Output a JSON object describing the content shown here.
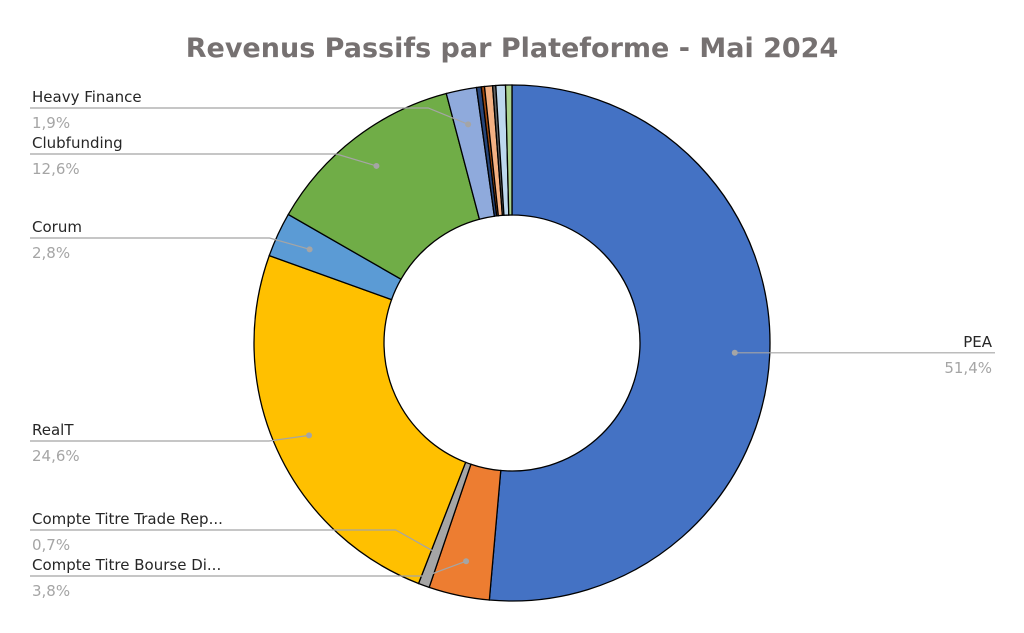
{
  "chart_data": {
    "type": "pie",
    "variant": "doughnut",
    "title": "Revenus Passifs par Plateforme - Mai 2024",
    "slices": [
      {
        "name": "PEA",
        "value": 51.4,
        "label": "51,4%",
        "color": "#4472C4",
        "labeled": true
      },
      {
        "name": "Compte Titre Bourse Di...",
        "value": 3.8,
        "label": "3,8%",
        "color": "#ED7D31",
        "labeled": true
      },
      {
        "name": "Compte Titre Trade Rep...",
        "value": 0.7,
        "label": "0,7%",
        "color": "#A5A5A5",
        "labeled": true
      },
      {
        "name": "RealT",
        "value": 24.6,
        "label": "24,6%",
        "color": "#FFC000",
        "labeled": true
      },
      {
        "name": "Corum",
        "value": 2.8,
        "label": "2,8%",
        "color": "#5B9BD5",
        "labeled": true
      },
      {
        "name": "Clubfunding",
        "value": 12.6,
        "label": "12,6%",
        "color": "#70AD47",
        "labeled": true
      },
      {
        "name": "Heavy Finance",
        "value": 1.9,
        "label": "1,9%",
        "color": "#8FAADC",
        "labeled": true
      },
      {
        "name": "",
        "value": 0.3,
        "label": "",
        "color": "#264478",
        "labeled": false
      },
      {
        "name": "",
        "value": 0.2,
        "label": "",
        "color": "#9E480E",
        "labeled": false
      },
      {
        "name": "",
        "value": 0.5,
        "label": "",
        "color": "#F4B183",
        "labeled": false
      },
      {
        "name": "",
        "value": 0.2,
        "label": "",
        "color": "#636363",
        "labeled": false
      },
      {
        "name": "",
        "value": 0.6,
        "label": "",
        "color": "#BDD7EE",
        "labeled": false
      },
      {
        "name": "",
        "value": 0.4,
        "label": "",
        "color": "#A9D18E",
        "labeled": false
      }
    ],
    "legend": "none",
    "data_labels": "outside with leader lines"
  }
}
